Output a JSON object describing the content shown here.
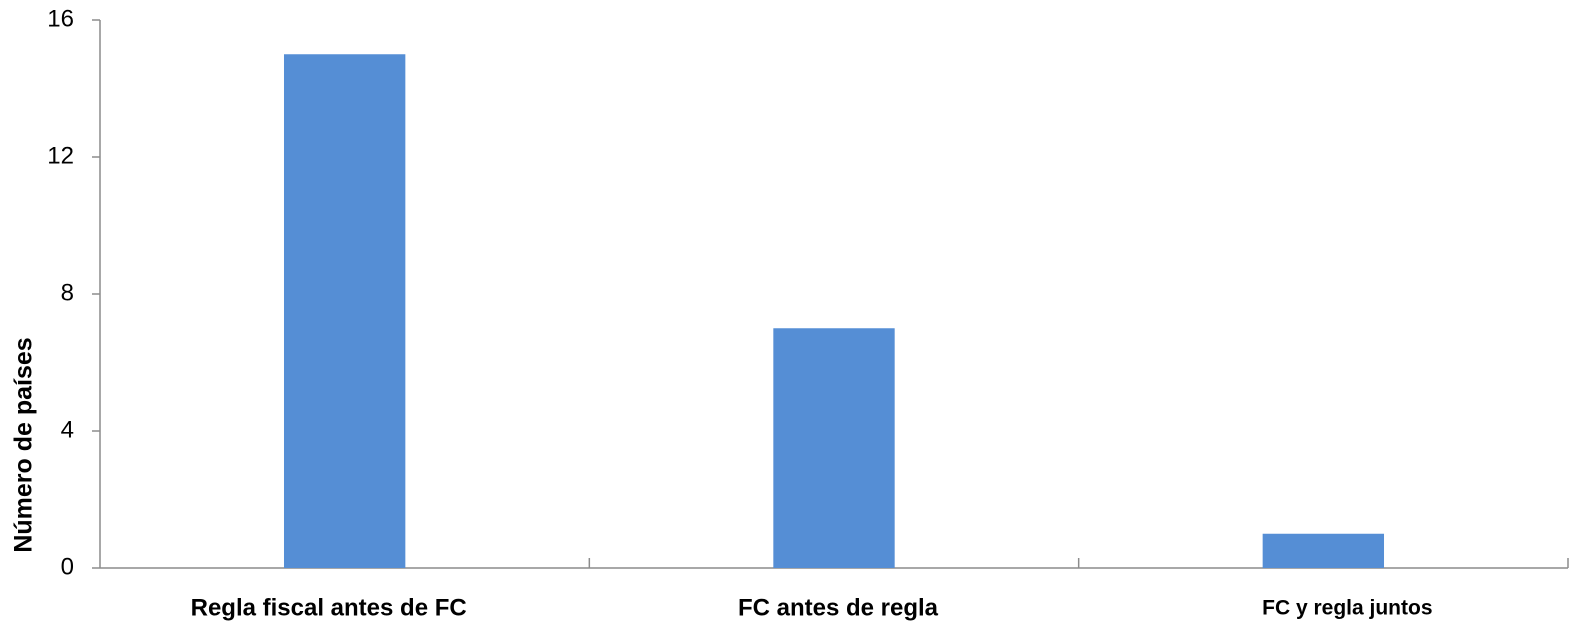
{
  "chart_data": {
    "type": "bar",
    "y_axis_label": "Número de países",
    "categories": [
      "Regla fiscal antes de FC",
      "FC antes de regla",
      "FC y regla juntos"
    ],
    "values": [
      15,
      7,
      1
    ],
    "color": "#558ed5",
    "ylim": [
      0,
      16
    ],
    "yticks": [
      0,
      4,
      8,
      12,
      16
    ],
    "grid": false
  }
}
